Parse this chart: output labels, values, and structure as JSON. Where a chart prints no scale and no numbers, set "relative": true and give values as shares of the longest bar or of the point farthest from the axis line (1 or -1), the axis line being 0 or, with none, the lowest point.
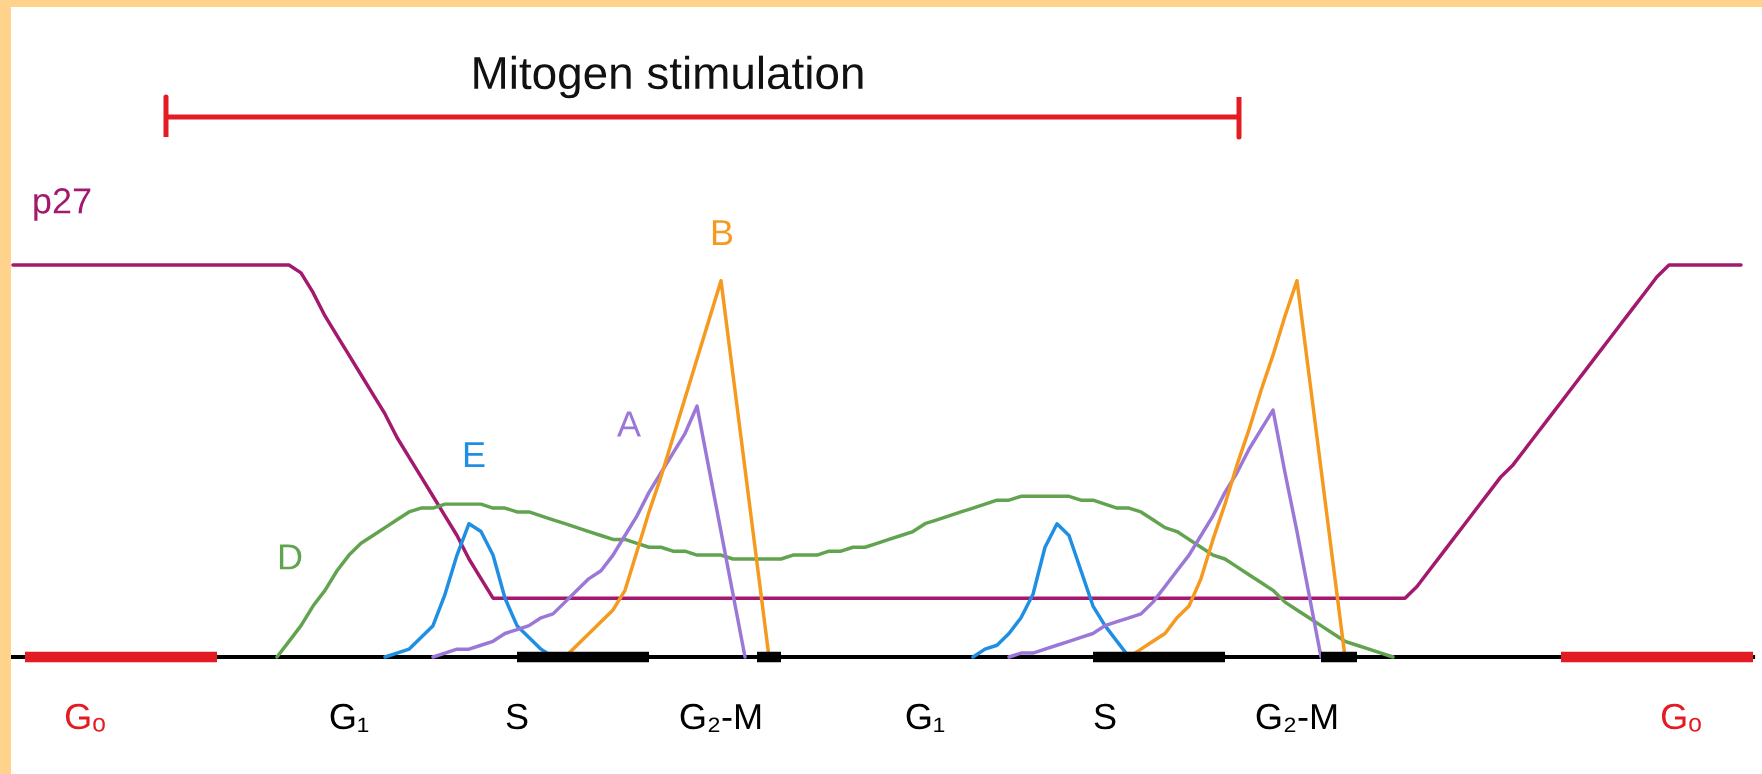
{
  "chart_data": {
    "type": "line",
    "relative": true,
    "categories": [
      null,
      null,
      null,
      null,
      null,
      null,
      "Gₒ",
      null,
      null,
      null,
      null,
      null,
      null,
      null,
      null,
      null,
      null,
      null,
      null,
      null,
      null,
      null,
      null,
      null,
      null,
      null,
      null,
      null,
      "G₁",
      null,
      null,
      null,
      null,
      null,
      null,
      null,
      null,
      null,
      null,
      null,
      null,
      null,
      "S",
      null,
      null,
      null,
      null,
      null,
      null,
      null,
      null,
      null,
      null,
      null,
      null,
      null,
      null,
      null,
      null,
      "G₂-M",
      null,
      null,
      null,
      null,
      null,
      null,
      null,
      null,
      null,
      null,
      null,
      null,
      null,
      null,
      null,
      null,
      "G₁",
      null,
      null,
      null,
      null,
      null,
      null,
      null,
      null,
      null,
      null,
      null,
      null,
      null,
      null,
      "S",
      null,
      null,
      null,
      null,
      null,
      null,
      null,
      null,
      null,
      null,
      null,
      null,
      null,
      null,
      null,
      "G₂-M",
      null,
      null,
      null,
      null,
      null,
      null,
      null,
      null,
      null,
      null,
      null,
      null,
      null,
      null,
      null,
      null,
      null,
      null,
      null,
      null,
      null,
      null,
      null,
      null,
      null,
      null,
      null,
      null,
      null,
      null,
      null,
      "Gₒ",
      null,
      null,
      null,
      null,
      null,
      null
    ],
    "series": [
      {
        "name": "p27",
        "color": "#a3196e",
        "values": [
          1,
          1,
          1,
          1,
          1,
          1,
          1,
          1,
          1,
          1,
          1,
          1,
          1,
          1,
          1,
          1,
          1,
          1,
          1,
          1,
          1,
          1,
          1,
          1,
          0.98,
          0.93,
          0.87,
          0.82,
          0.77,
          0.72,
          0.67,
          0.62,
          0.56,
          0.51,
          0.46,
          0.41,
          0.36,
          0.31,
          0.25,
          0.2,
          0.15,
          0.15,
          0.15,
          0.15,
          0.15,
          0.15,
          0.15,
          0.15,
          0.15,
          0.15,
          0.15,
          0.15,
          0.15,
          0.15,
          0.15,
          0.15,
          0.15,
          0.15,
          0.15,
          0.15,
          0.15,
          0.15,
          0.15,
          0.15,
          0.15,
          0.15,
          0.15,
          0.15,
          0.15,
          0.15,
          0.15,
          0.15,
          0.15,
          0.15,
          0.15,
          0.15,
          0.15,
          0.15,
          0.15,
          0.15,
          0.15,
          0.15,
          0.15,
          0.15,
          0.15,
          0.15,
          0.15,
          0.15,
          0.15,
          0.15,
          0.15,
          0.15,
          0.15,
          0.15,
          0.15,
          0.15,
          0.15,
          0.15,
          0.15,
          0.15,
          0.15,
          0.15,
          0.15,
          0.15,
          0.15,
          0.15,
          0.15,
          0.15,
          0.15,
          0.15,
          0.15,
          0.15,
          0.15,
          0.15,
          0.15,
          0.15,
          0.15,
          0.18,
          0.22,
          0.26,
          0.3,
          0.34,
          0.38,
          0.42,
          0.46,
          0.49,
          0.53,
          0.57,
          0.61,
          0.65,
          0.69,
          0.73,
          0.77,
          0.81,
          0.85,
          0.89,
          0.93,
          0.97,
          1,
          1,
          1,
          1,
          1,
          1,
          1,
          null
        ]
      },
      {
        "name": "D",
        "color": "#62a34f",
        "values": [
          null,
          null,
          null,
          null,
          null,
          null,
          null,
          null,
          null,
          null,
          null,
          null,
          null,
          null,
          null,
          null,
          null,
          null,
          null,
          null,
          null,
          null,
          0,
          0.04,
          0.08,
          0.13,
          0.17,
          0.22,
          0.26,
          0.29,
          0.31,
          0.33,
          0.35,
          0.37,
          0.38,
          0.38,
          0.39,
          0.39,
          0.39,
          0.39,
          0.38,
          0.38,
          0.37,
          0.37,
          0.36,
          0.35,
          0.34,
          0.33,
          0.32,
          0.31,
          0.3,
          0.3,
          0.29,
          0.28,
          0.28,
          0.27,
          0.27,
          0.26,
          0.26,
          0.26,
          0.25,
          0.25,
          0.25,
          0.25,
          0.25,
          0.26,
          0.26,
          0.26,
          0.27,
          0.27,
          0.28,
          0.28,
          0.29,
          0.3,
          0.31,
          0.32,
          0.34,
          0.35,
          0.36,
          0.37,
          0.38,
          0.39,
          0.4,
          0.4,
          0.41,
          0.41,
          0.41,
          0.41,
          0.41,
          0.4,
          0.4,
          0.39,
          0.38,
          0.38,
          0.37,
          0.35,
          0.33,
          0.32,
          0.3,
          0.28,
          0.26,
          0.25,
          0.23,
          0.21,
          0.19,
          0.17,
          0.14,
          0.12,
          0.1,
          0.08,
          0.06,
          0.04,
          0.03,
          0.02,
          0.01,
          0,
          null,
          null,
          null,
          null,
          null,
          null,
          null,
          null,
          null,
          null,
          null,
          null,
          null,
          null,
          null,
          null,
          null,
          null,
          null,
          null,
          null,
          null,
          null,
          null,
          null,
          null,
          null,
          null,
          null,
          null
        ]
      },
      {
        "name": "E",
        "color": "#1f8fe3",
        "values": [
          null,
          null,
          null,
          null,
          null,
          null,
          null,
          null,
          null,
          null,
          null,
          null,
          null,
          null,
          null,
          null,
          null,
          null,
          null,
          null,
          null,
          null,
          null,
          null,
          null,
          null,
          null,
          null,
          null,
          null,
          null,
          0,
          0.01,
          0.02,
          0.05,
          0.08,
          0.16,
          0.26,
          0.34,
          0.32,
          0.26,
          0.15,
          0.08,
          0.05,
          0.02,
          0,
          null,
          null,
          null,
          null,
          null,
          null,
          null,
          null,
          null,
          null,
          null,
          null,
          null,
          null,
          null,
          null,
          null,
          null,
          null,
          null,
          null,
          null,
          null,
          null,
          null,
          null,
          null,
          null,
          null,
          null,
          null,
          null,
          null,
          null,
          0,
          0.02,
          0.03,
          0.06,
          0.1,
          0.16,
          0.28,
          0.34,
          0.31,
          0.22,
          0.13,
          0.08,
          0.04,
          0,
          null,
          null,
          null,
          null,
          null,
          null,
          null,
          null,
          null,
          null,
          null,
          null,
          null,
          null,
          null,
          null,
          null,
          null,
          null,
          null,
          null,
          null,
          null,
          null,
          null,
          null,
          null,
          null,
          null,
          null,
          null,
          null,
          null,
          null,
          null,
          null,
          null,
          null,
          null,
          null,
          null,
          null,
          null,
          null,
          null,
          null,
          null,
          null,
          null,
          null,
          null,
          null
        ]
      },
      {
        "name": "A",
        "color": "#9b78d8",
        "values": [
          null,
          null,
          null,
          null,
          null,
          null,
          null,
          null,
          null,
          null,
          null,
          null,
          null,
          null,
          null,
          null,
          null,
          null,
          null,
          null,
          null,
          null,
          null,
          null,
          null,
          null,
          null,
          null,
          null,
          null,
          null,
          null,
          null,
          null,
          null,
          0,
          0.01,
          0.02,
          0.02,
          0.03,
          0.04,
          0.06,
          0.07,
          0.08,
          0.1,
          0.11,
          0.14,
          0.17,
          0.2,
          0.22,
          0.26,
          0.31,
          0.36,
          0.42,
          0.47,
          0.52,
          0.57,
          0.64,
          0.48,
          0.32,
          0.16,
          0,
          null,
          null,
          null,
          null,
          null,
          null,
          null,
          null,
          null,
          null,
          null,
          null,
          null,
          null,
          null,
          null,
          null,
          null,
          null,
          null,
          null,
          0,
          0.01,
          0.01,
          0.02,
          0.03,
          0.04,
          0.05,
          0.06,
          0.08,
          0.09,
          0.1,
          0.11,
          0.14,
          0.18,
          0.22,
          0.26,
          0.31,
          0.36,
          0.42,
          0.47,
          0.53,
          0.58,
          0.63,
          0.47,
          0.32,
          0.16,
          0,
          null,
          null,
          null,
          null,
          null,
          null,
          null,
          null,
          null,
          null,
          null,
          null,
          null,
          null,
          null,
          null,
          null,
          null,
          null,
          null,
          null,
          null,
          null,
          null,
          null,
          null,
          null,
          null,
          null,
          null,
          null,
          null,
          null,
          null,
          null,
          null
        ]
      },
      {
        "name": "B",
        "color": "#f59a1e",
        "values": [
          null,
          null,
          null,
          null,
          null,
          null,
          null,
          null,
          null,
          null,
          null,
          null,
          null,
          null,
          null,
          null,
          null,
          null,
          null,
          null,
          null,
          null,
          null,
          null,
          null,
          null,
          null,
          null,
          null,
          null,
          null,
          null,
          null,
          null,
          null,
          null,
          null,
          null,
          null,
          null,
          null,
          null,
          null,
          null,
          null,
          null,
          0,
          0.03,
          0.06,
          0.09,
          0.12,
          0.17,
          0.27,
          0.37,
          0.46,
          0.56,
          0.66,
          0.76,
          0.86,
          0.96,
          0.72,
          0.48,
          0.24,
          0,
          null,
          null,
          null,
          null,
          null,
          null,
          null,
          null,
          null,
          null,
          null,
          null,
          null,
          null,
          null,
          null,
          null,
          null,
          null,
          null,
          null,
          null,
          null,
          null,
          null,
          null,
          null,
          null,
          null,
          0,
          0.02,
          0.04,
          0.06,
          0.1,
          0.13,
          0.2,
          0.3,
          0.39,
          0.49,
          0.58,
          0.68,
          0.77,
          0.87,
          0.96,
          0.72,
          0.48,
          0.24,
          0,
          null,
          null,
          null,
          null,
          null,
          null,
          null,
          null,
          null,
          null,
          null,
          null,
          null,
          null,
          null,
          null,
          null,
          null,
          null,
          null,
          null,
          null,
          null,
          null,
          null,
          null,
          null,
          null,
          null,
          null,
          null,
          null,
          null,
          null
        ]
      },
      {
        "color": "#e31b23",
        "values": [
          null,
          0,
          0,
          0,
          0,
          0,
          0,
          0,
          0,
          0,
          0,
          0,
          0,
          0,
          0,
          0,
          0,
          0,
          null,
          null,
          null,
          null,
          null,
          null,
          null,
          null,
          null,
          null,
          null,
          null,
          null,
          null,
          null,
          null,
          null,
          null,
          null,
          null,
          null,
          null,
          null,
          null,
          null,
          null,
          null,
          null,
          null,
          null,
          null,
          null,
          null,
          null,
          null,
          null,
          null,
          null,
          null,
          null,
          null,
          null,
          null,
          null,
          null,
          null,
          null,
          null,
          null,
          null,
          null,
          null,
          null,
          null,
          null,
          null,
          null,
          null,
          null,
          null,
          null,
          null,
          null,
          null,
          null,
          null,
          null,
          null,
          null,
          null,
          null,
          null,
          null,
          null,
          null,
          null,
          null,
          null,
          null,
          null,
          null,
          null,
          null,
          null,
          null,
          null,
          null,
          null,
          null,
          null,
          null,
          null,
          null,
          null,
          null,
          null,
          null,
          null,
          null,
          null,
          null,
          null,
          null,
          null,
          null,
          null,
          null,
          null,
          null,
          null,
          null,
          0,
          0,
          0,
          0,
          0,
          0,
          0,
          0,
          0,
          0,
          0,
          0,
          0,
          0,
          0,
          0,
          0
        ]
      },
      {
        "color": "#000000",
        "values": [
          null,
          null,
          null,
          null,
          null,
          null,
          null,
          null,
          null,
          null,
          null,
          null,
          null,
          null,
          null,
          null,
          null,
          null,
          null,
          null,
          null,
          null,
          null,
          null,
          null,
          null,
          null,
          null,
          null,
          null,
          null,
          null,
          null,
          null,
          null,
          null,
          null,
          null,
          null,
          null,
          null,
          null,
          0,
          0,
          0,
          0,
          0,
          0,
          0,
          0,
          0,
          0,
          0,
          0,
          null,
          null,
          null,
          null,
          null,
          null,
          null,
          null,
          0,
          0,
          0,
          null,
          null,
          null,
          null,
          null,
          null,
          null,
          null,
          null,
          null,
          null,
          null,
          null,
          null,
          null,
          null,
          null,
          null,
          null,
          null,
          null,
          null,
          null,
          null,
          null,
          0,
          0,
          0,
          0,
          0,
          0,
          0,
          0,
          0,
          0,
          0,
          0,
          null,
          null,
          null,
          null,
          null,
          null,
          null,
          0,
          0,
          0,
          0,
          null,
          null,
          null,
          null,
          null,
          null,
          null,
          null,
          null,
          null,
          null,
          null,
          null,
          null,
          null,
          null,
          null,
          null,
          null,
          null,
          null,
          null,
          null,
          null,
          null,
          null,
          null,
          null,
          null,
          null,
          null,
          null,
          null
        ]
      }
    ],
    "annotations": [
      "Mitogen stimulation"
    ]
  }
}
